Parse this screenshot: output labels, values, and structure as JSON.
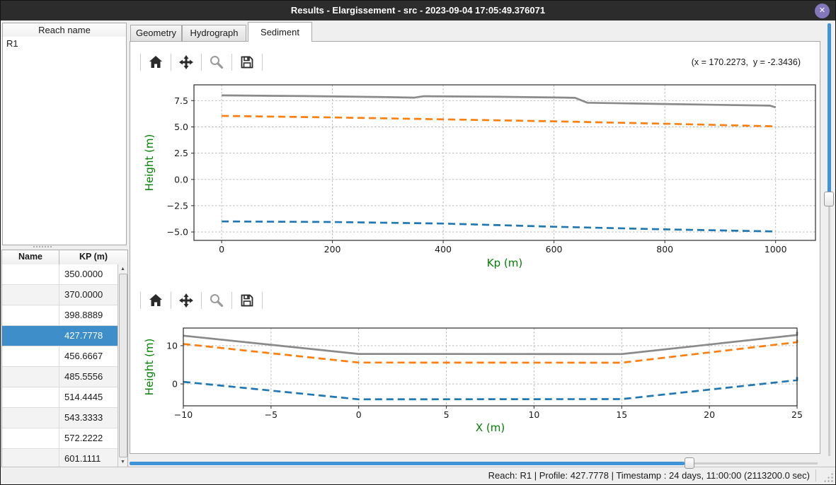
{
  "window": {
    "title": "Results - Elargissement - src - 2023-09-04 17:05:49.376071",
    "close_glyph": "✕"
  },
  "sidebar": {
    "reach_header": "Reach name",
    "reaches": [
      "R1"
    ],
    "table": {
      "columns": [
        "Name",
        "KP (m)"
      ],
      "rows": [
        {
          "name": "",
          "kp": "350.0000",
          "selected": false
        },
        {
          "name": "",
          "kp": "370.0000",
          "selected": false
        },
        {
          "name": "",
          "kp": "398.8889",
          "selected": false
        },
        {
          "name": "",
          "kp": "427.7778",
          "selected": true
        },
        {
          "name": "",
          "kp": "456.6667",
          "selected": false
        },
        {
          "name": "",
          "kp": "485.5556",
          "selected": false
        },
        {
          "name": "",
          "kp": "514.4445",
          "selected": false
        },
        {
          "name": "",
          "kp": "543.3333",
          "selected": false
        },
        {
          "name": "",
          "kp": "572.2222",
          "selected": false
        },
        {
          "name": "",
          "kp": "601.1111",
          "selected": false
        }
      ]
    }
  },
  "tabs": [
    {
      "label": "Geometry",
      "active": false
    },
    {
      "label": "Hydrograph",
      "active": false
    },
    {
      "label": "Sediment",
      "active": true
    }
  ],
  "plot_toolbar": {
    "icons": [
      "home",
      "pan",
      "zoom",
      "save"
    ],
    "coords_readout": "(x = 170.2273,  y = -2.3436)"
  },
  "chart_data": [
    {
      "type": "line",
      "title": "",
      "xlabel": "Kp (m)",
      "ylabel": "Height (m)",
      "xlim": [
        -50,
        1072
      ],
      "ylim": [
        -5.8,
        9.0
      ],
      "grid": true,
      "legend": "none",
      "xticks": [
        {
          "v": 0,
          "label": "0"
        },
        {
          "v": 200,
          "label": "200"
        },
        {
          "v": 400,
          "label": "400"
        },
        {
          "v": 600,
          "label": "600"
        },
        {
          "v": 800,
          "label": "800"
        },
        {
          "v": 1000,
          "label": "1000"
        }
      ],
      "yticks": [
        {
          "v": -5.0,
          "label": "−5.0"
        },
        {
          "v": -2.5,
          "label": "−2.5"
        },
        {
          "v": 0.0,
          "label": "0.0"
        },
        {
          "v": 2.5,
          "label": "2.5"
        },
        {
          "v": 5.0,
          "label": "5.0"
        },
        {
          "v": 7.5,
          "label": "7.5"
        }
      ],
      "series": [
        {
          "name": "top-line-gray",
          "style": "solid",
          "color": "#8a8a8a",
          "points": [
            [
              0,
              8.0
            ],
            [
              150,
              7.93
            ],
            [
              300,
              7.83
            ],
            [
              348,
              7.78
            ],
            [
              365,
              7.92
            ],
            [
              500,
              7.86
            ],
            [
              615,
              7.79
            ],
            [
              638,
              7.76
            ],
            [
              660,
              7.3
            ],
            [
              800,
              7.18
            ],
            [
              990,
              7.02
            ],
            [
              1000,
              6.86
            ]
          ]
        },
        {
          "name": "middle-line-orange",
          "style": "dashed",
          "color": "#ff7f0e",
          "points": [
            [
              0,
              6.05
            ],
            [
              200,
              5.9
            ],
            [
              400,
              5.72
            ],
            [
              600,
              5.53
            ],
            [
              800,
              5.3
            ],
            [
              1000,
              5.05
            ]
          ]
        },
        {
          "name": "bottom-line-blue",
          "style": "dashed",
          "color": "#1f77b4",
          "points": [
            [
              0,
              -4.0
            ],
            [
              200,
              -4.05
            ],
            [
              400,
              -4.2
            ],
            [
              600,
              -4.5
            ],
            [
              800,
              -4.75
            ],
            [
              1000,
              -4.95
            ]
          ]
        }
      ]
    },
    {
      "type": "line",
      "title": "",
      "xlabel": "X (m)",
      "ylabel": "Height (m)",
      "xlim": [
        -10,
        25
      ],
      "ylim": [
        -5.7,
        14.6
      ],
      "grid": true,
      "legend": "none",
      "xticks": [
        {
          "v": -10,
          "label": "−10"
        },
        {
          "v": -5,
          "label": "−5"
        },
        {
          "v": 0,
          "label": "0"
        },
        {
          "v": 5,
          "label": "5"
        },
        {
          "v": 10,
          "label": "10"
        },
        {
          "v": 15,
          "label": "15"
        },
        {
          "v": 20,
          "label": "20"
        },
        {
          "v": 25,
          "label": "25"
        }
      ],
      "yticks": [
        {
          "v": 0,
          "label": "0"
        },
        {
          "v": 10,
          "label": "10"
        }
      ],
      "series": [
        {
          "name": "top-line-gray",
          "style": "solid",
          "color": "#8a8a8a",
          "points": [
            [
              -10,
              12.6
            ],
            [
              0,
              7.85
            ],
            [
              15,
              7.8
            ],
            [
              25,
              12.8
            ],
            [
              25,
              13.6
            ]
          ]
        },
        {
          "name": "middle-line-orange",
          "style": "dashed",
          "color": "#ff7f0e",
          "points": [
            [
              -10,
              10.45
            ],
            [
              0,
              5.6
            ],
            [
              15,
              5.55
            ],
            [
              25,
              10.9
            ],
            [
              25,
              11.5
            ]
          ]
        },
        {
          "name": "bottom-line-blue",
          "style": "dashed",
          "color": "#1f77b4",
          "points": [
            [
              -10,
              0.55
            ],
            [
              0,
              -4.0
            ],
            [
              15,
              -3.95
            ],
            [
              25,
              1.0
            ],
            [
              25,
              1.9
            ]
          ]
        }
      ]
    }
  ],
  "status_bar": {
    "text": "Reach: R1 | Profile: 427.7778 | Timestamp : 24 days, 11:00:00 (2113200.0 sec)"
  },
  "colors": {
    "titlebar_bg": "#2c2c2c",
    "close_button_purple": "#8577bb",
    "selection_blue": "#3d8ec9",
    "slider_blue": "#3f93d6",
    "series_gray": "#8a8a8a",
    "series_orange": "#ff7f0e",
    "series_blue": "#1f77b4",
    "axis_label_green": "#008000"
  }
}
